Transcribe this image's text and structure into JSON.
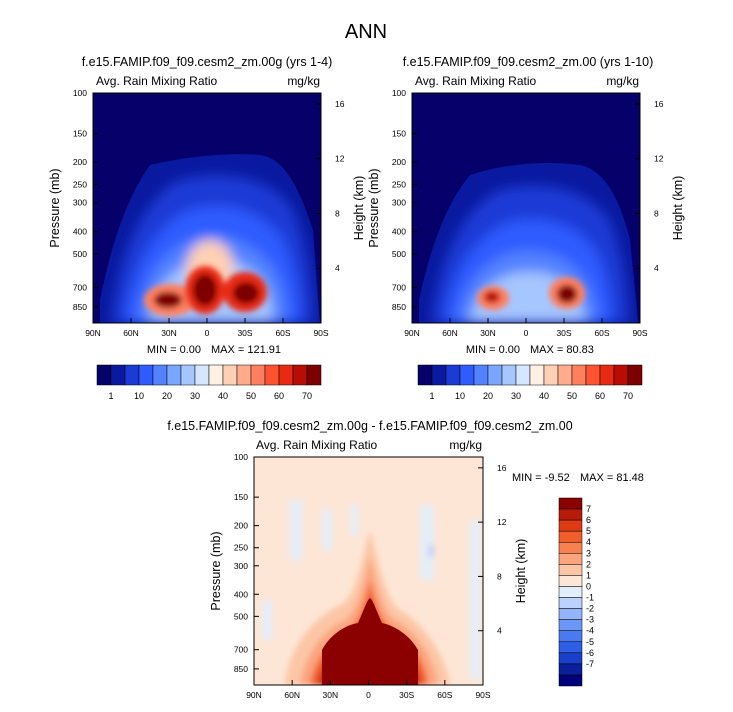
{
  "title": "ANN",
  "colors": {
    "abs_scale": [
      "#05006a",
      "#0a1aa0",
      "#1a3bd6",
      "#2f5bff",
      "#5282ff",
      "#7ba6ff",
      "#a6c6ff",
      "#d5e6ff",
      "#fff0e4",
      "#ffd0b4",
      "#ffac8c",
      "#ff7f5e",
      "#ff5230",
      "#e82a12",
      "#b80d04",
      "#7d0000"
    ],
    "diff_scale": [
      "#00007a",
      "#0a1f99",
      "#1a3fcc",
      "#2e5ee6",
      "#4a7af2",
      "#6d97f7",
      "#93b3fa",
      "#bcd1fc",
      "#e3eefd",
      "#fde6d6",
      "#fcc6a6",
      "#fba47e",
      "#f9804f",
      "#f25d2c",
      "#de3b14",
      "#b81b07",
      "#8b0000"
    ]
  },
  "chart_data": [
    {
      "type": "heatmap",
      "title": "f.e15.FAMIP.f09_f09.cesm2_zm.00g (yrs 1-4)",
      "field": "Avg. Rain Mixing Ratio",
      "units": "mg/kg",
      "ylabel": "Pressure (mb)",
      "y2label": "Height (km)",
      "x_ticks": [
        "90N",
        "60N",
        "30N",
        "0",
        "30S",
        "60S",
        "90S"
      ],
      "y_ticks": [
        "100",
        "150",
        "200",
        "250",
        "300",
        "400",
        "500",
        "700",
        "850"
      ],
      "y2_ticks": [
        "16",
        "12",
        "8",
        "4"
      ],
      "min_label": "MIN = 0.00",
      "max_label": "MAX = 121.91",
      "min": 0.0,
      "max": 121.91,
      "colorbar_labels": [
        "1",
        "10",
        "20",
        "30",
        "40",
        "50",
        "60",
        "70"
      ]
    },
    {
      "type": "heatmap",
      "title": "f.e15.FAMIP.f09_f09.cesm2_zm.00 (yrs 1-10)",
      "field": "Avg. Rain Mixing Ratio",
      "units": "mg/kg",
      "ylabel": "Pressure (mb)",
      "y2label": "Height (km)",
      "x_ticks": [
        "90N",
        "60N",
        "30N",
        "0",
        "30S",
        "60S",
        "90S"
      ],
      "y_ticks": [
        "100",
        "150",
        "200",
        "250",
        "300",
        "400",
        "500",
        "700",
        "850"
      ],
      "y2_ticks": [
        "16",
        "12",
        "8",
        "4"
      ],
      "min_label": "MIN = 0.00",
      "max_label": "MAX = 80.83",
      "min": 0.0,
      "max": 80.83,
      "colorbar_labels": [
        "1",
        "10",
        "20",
        "30",
        "40",
        "50",
        "60",
        "70"
      ]
    },
    {
      "type": "heatmap",
      "title": "f.e15.FAMIP.f09_f09.cesm2_zm.00g - f.e15.FAMIP.f09_f09.cesm2_zm.00",
      "field": "Avg. Rain Mixing Ratio",
      "units": "mg/kg",
      "ylabel": "Pressure (mb)",
      "y2label": "Height (km)",
      "x_ticks": [
        "90N",
        "60N",
        "30N",
        "0",
        "30S",
        "60S",
        "90S"
      ],
      "y_ticks": [
        "100",
        "150",
        "200",
        "250",
        "300",
        "400",
        "500",
        "700",
        "850"
      ],
      "y2_ticks": [
        "16",
        "12",
        "8",
        "4"
      ],
      "min_label": "MIN = -9.52",
      "max_label": "MAX = 81.48",
      "min": -9.52,
      "max": 81.48,
      "colorbar_labels": [
        "7",
        "6",
        "5",
        "4",
        "3",
        "2",
        "1",
        "0",
        "-1",
        "-2",
        "-3",
        "-4",
        "-5",
        "-6",
        "-7"
      ]
    }
  ]
}
